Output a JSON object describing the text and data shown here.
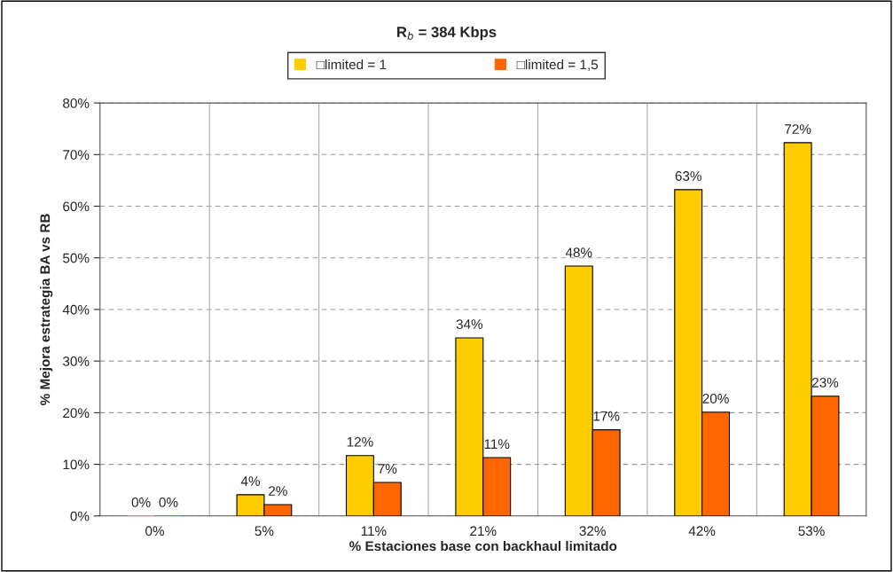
{
  "chart_data": {
    "type": "bar",
    "title": "R$_{b}$ = 384 Kbps",
    "xlabel": "% Estaciones base con backhaul limitado",
    "ylabel": "% Mejora estrategia BA vs RB",
    "categories": [
      "0%",
      "5%",
      "11%",
      "21%",
      "32%",
      "42%",
      "53%"
    ],
    "series": [
      {
        "name": "□limited = 1",
        "color": "#ffcc00",
        "values": [
          0,
          4.1,
          11.7,
          34.5,
          48.4,
          63.2,
          72.3
        ],
        "value_labels": [
          "0%",
          "4%",
          "12%",
          "34%",
          "48%",
          "63%",
          "72%"
        ]
      },
      {
        "name": "□limited = 1,5",
        "color": "#ff6600",
        "values": [
          0,
          2.2,
          6.5,
          11.3,
          16.7,
          20.1,
          23.2
        ],
        "value_labels": [
          "0%",
          "2%",
          "7%",
          "11%",
          "17%",
          "20%",
          "23%"
        ]
      }
    ],
    "ylim": [
      0,
      80
    ],
    "yticks": [
      {
        "value": 0,
        "label": "0%"
      },
      {
        "value": 10,
        "label": "10%"
      },
      {
        "value": 20,
        "label": "20%"
      },
      {
        "value": 30,
        "label": "30%"
      },
      {
        "value": 40,
        "label": "40%"
      },
      {
        "value": 50,
        "label": "50%"
      },
      {
        "value": 60,
        "label": "60%"
      },
      {
        "value": 70,
        "label": "70%"
      },
      {
        "value": 80,
        "label": "80%"
      }
    ],
    "grid": true,
    "legend": "top"
  }
}
